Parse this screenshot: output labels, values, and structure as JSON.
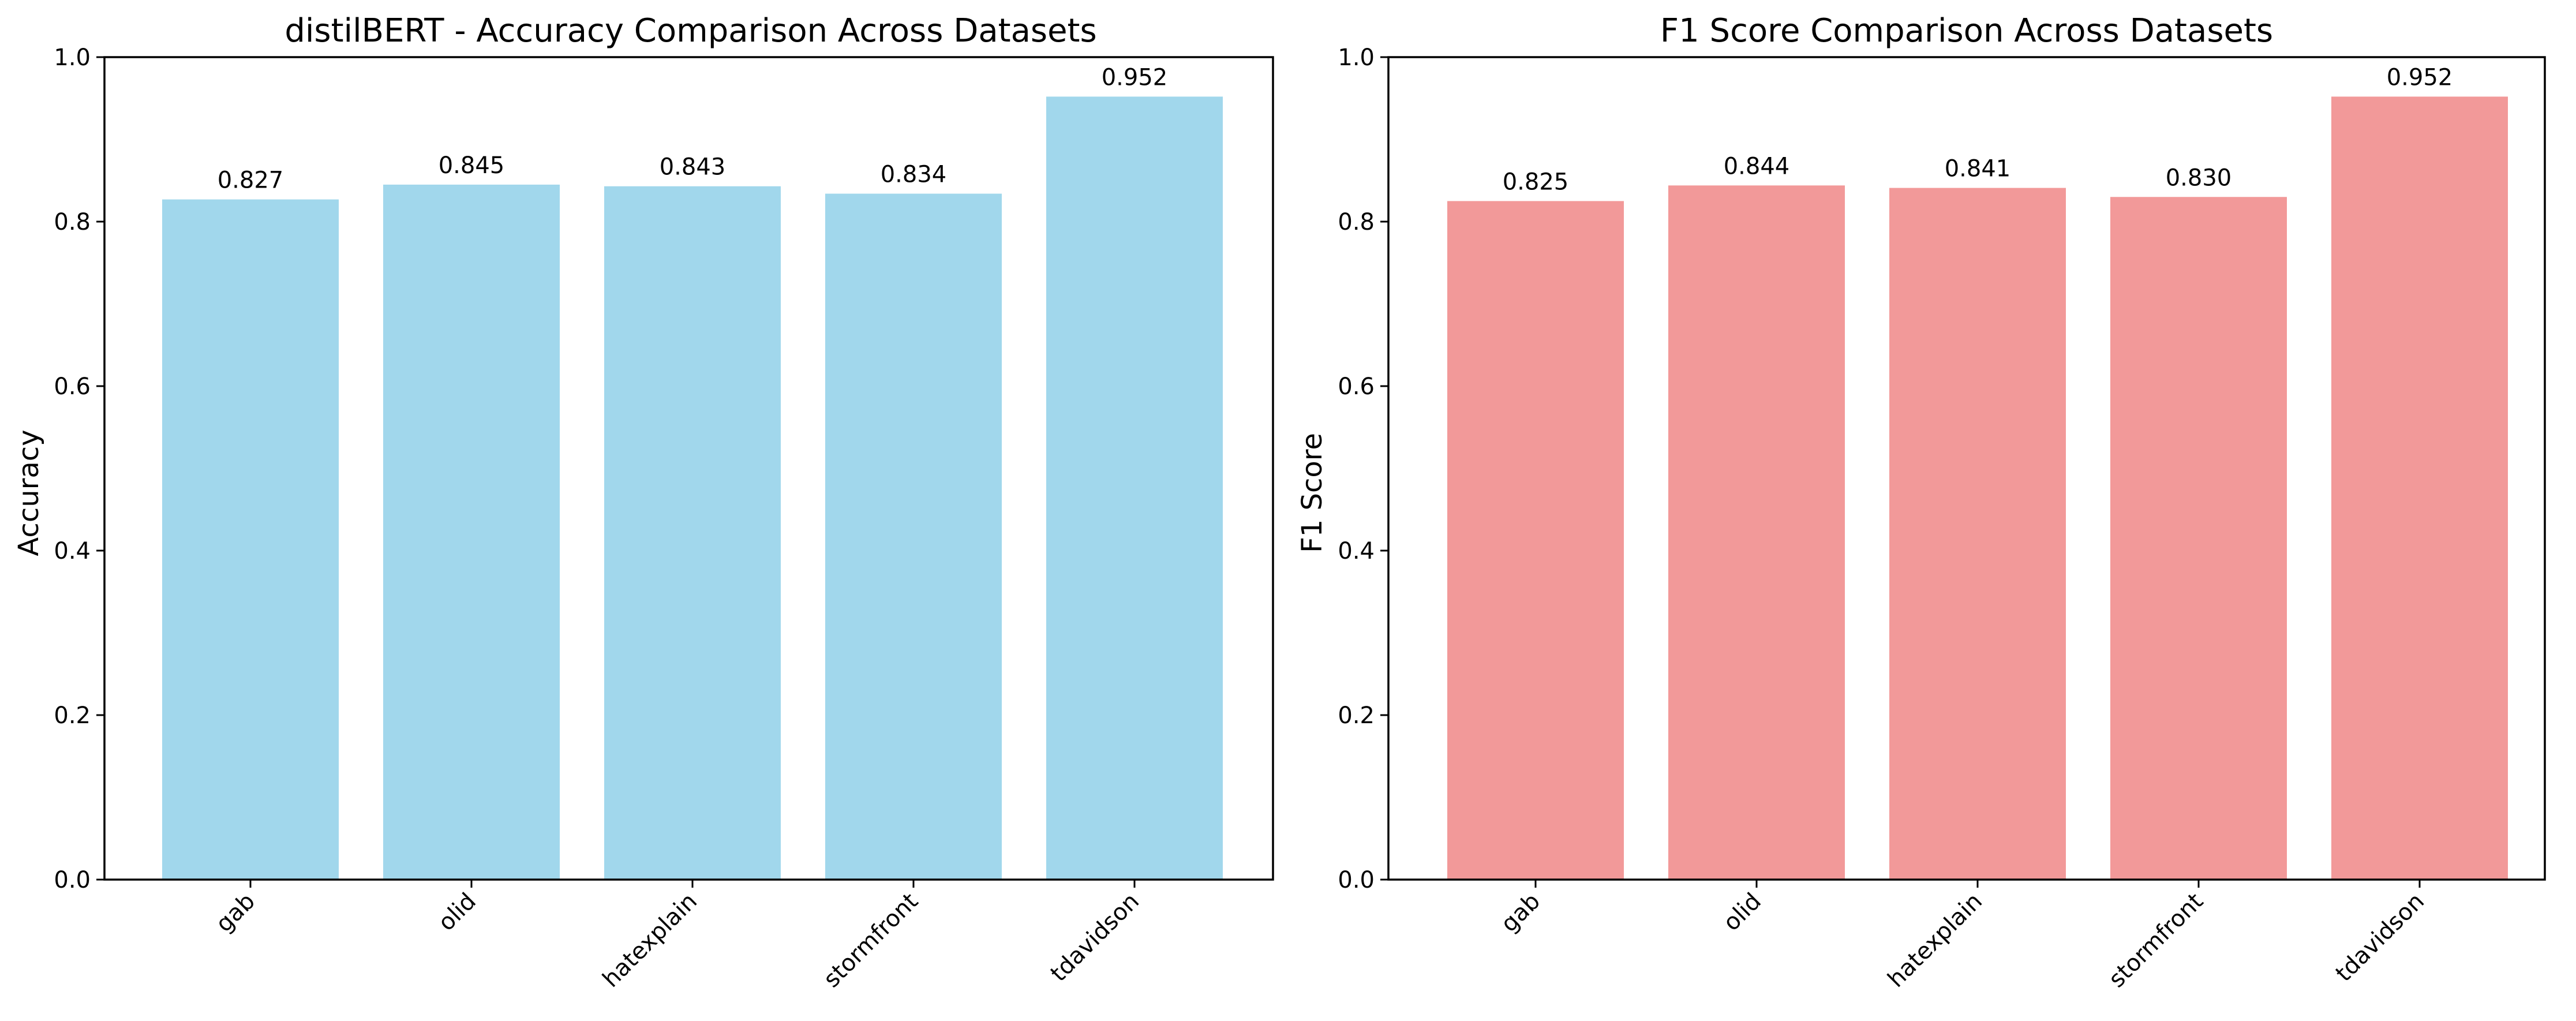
{
  "chart_data": [
    {
      "type": "bar",
      "title": "distilBERT - Accuracy Comparison Across Datasets",
      "xlabel": "",
      "ylabel": "Accuracy",
      "categories": [
        "gab",
        "olid",
        "hatexplain",
        "stormfront",
        "tdavidson"
      ],
      "values": [
        0.827,
        0.845,
        0.843,
        0.834,
        0.952
      ],
      "value_labels": [
        "0.827",
        "0.845",
        "0.843",
        "0.834",
        "0.952"
      ],
      "ylim": [
        0,
        1.0
      ],
      "yticks": [
        0.0,
        0.2,
        0.4,
        0.6,
        0.8,
        1.0
      ],
      "ytick_labels": [
        "0.0",
        "0.2",
        "0.4",
        "0.6",
        "0.8",
        "1.0"
      ],
      "xtick_rotation": 45,
      "grid": false,
      "color": "#a1d7ec"
    },
    {
      "type": "bar",
      "title": "F1 Score Comparison Across Datasets",
      "xlabel": "",
      "ylabel": "F1 Score",
      "categories": [
        "gab",
        "olid",
        "hatexplain",
        "stormfront",
        "tdavidson"
      ],
      "values": [
        0.825,
        0.844,
        0.841,
        0.83,
        0.952
      ],
      "value_labels": [
        "0.825",
        "0.844",
        "0.841",
        "0.830",
        "0.952"
      ],
      "ylim": [
        0,
        1.0
      ],
      "yticks": [
        0.0,
        0.2,
        0.4,
        0.6,
        0.8,
        1.0
      ],
      "ytick_labels": [
        "0.0",
        "0.2",
        "0.4",
        "0.6",
        "0.8",
        "1.0"
      ],
      "xtick_rotation": 45,
      "grid": false,
      "color": "#f29999"
    }
  ]
}
